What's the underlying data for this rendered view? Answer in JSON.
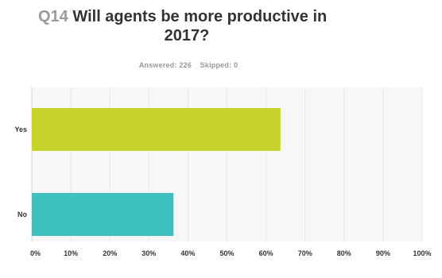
{
  "question": {
    "number": "Q14",
    "title_line1": "Will agents be more productive in",
    "title_line2": "2017?"
  },
  "summary": {
    "answered": "Answered: 226",
    "skipped": "Skipped: 0"
  },
  "colors": {
    "yes": "#c8d32c",
    "no": "#3fc0c0",
    "grid": "#e6e6e6",
    "plot_bg": "#f7f7f7"
  },
  "chart_data": {
    "type": "bar",
    "orientation": "horizontal",
    "categories": [
      "Yes",
      "No"
    ],
    "values": [
      63.7,
      36.3
    ],
    "xlim": [
      0,
      100
    ],
    "x_tick_labels": [
      "0%",
      "10%",
      "20%",
      "30%",
      "40%",
      "50%",
      "60%",
      "70%",
      "80%",
      "90%",
      "100%"
    ],
    "grid": true,
    "title": "",
    "xlabel": "",
    "ylabel": ""
  }
}
